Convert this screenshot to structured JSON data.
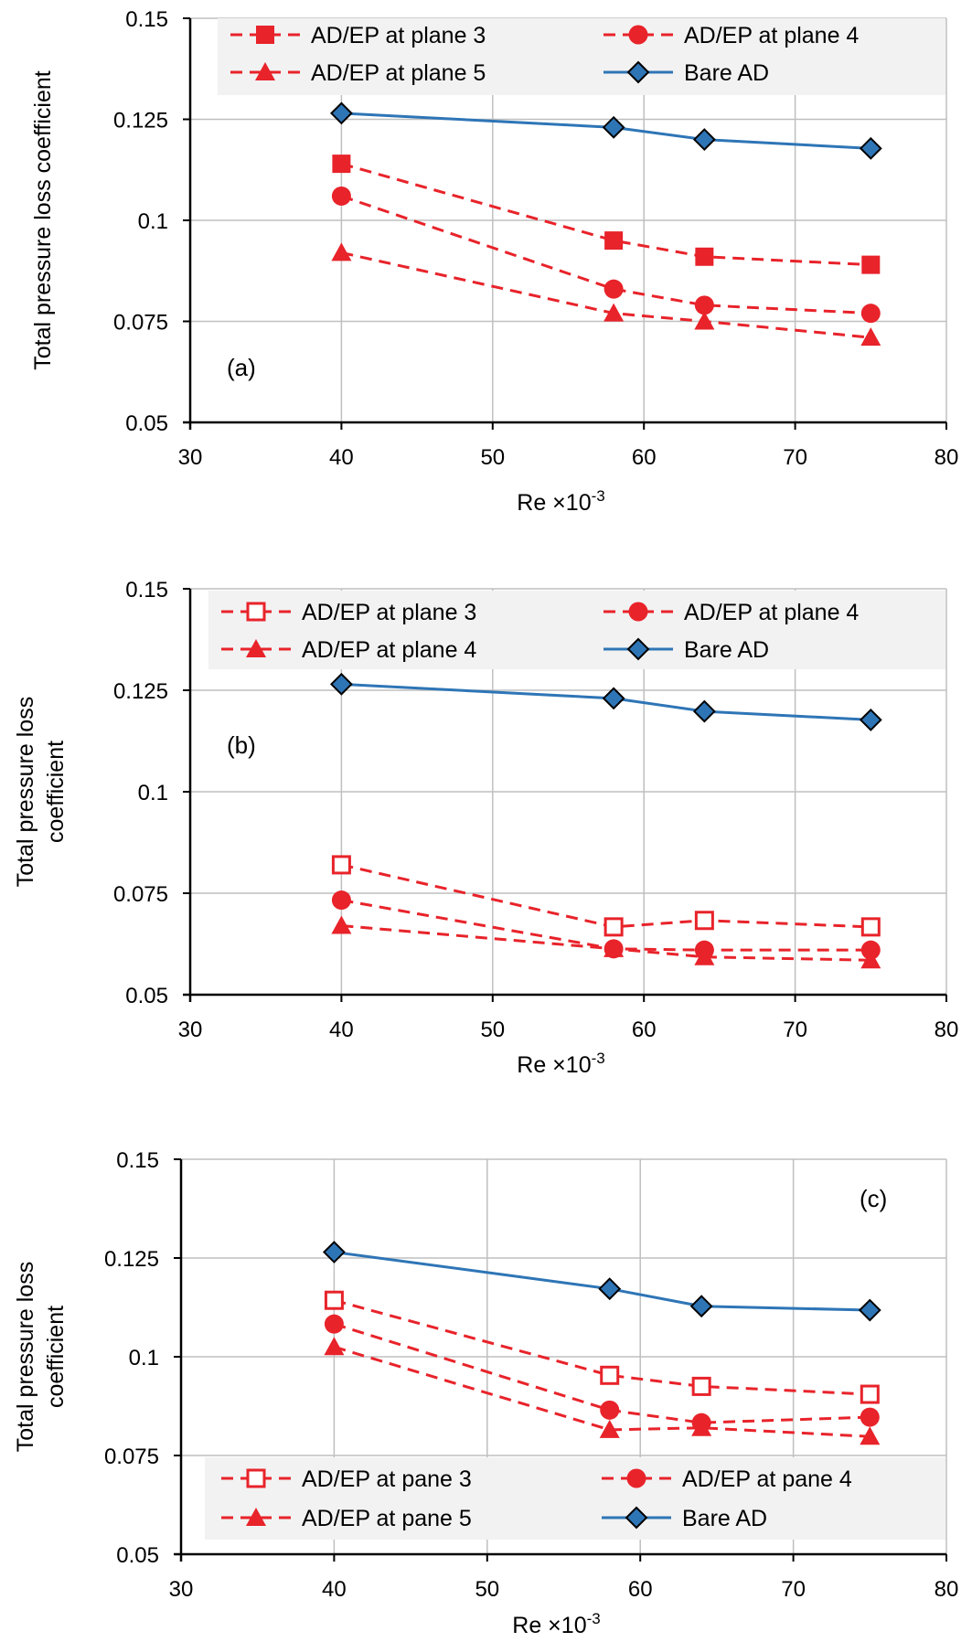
{
  "colors": {
    "red": "#e8232a",
    "blue": "#2e75b6",
    "diamond": "#2e75b6",
    "grid": "#bfbfbf",
    "legend_bg": "#f2f2f2"
  },
  "chart_data": [
    {
      "type": "line",
      "panel": "(a)",
      "xlabel": "Re ×10",
      "xlabel_sup": "-3",
      "ylabel_lines": [
        "Total pressure loss coefficient"
      ],
      "xlim": [
        30,
        80
      ],
      "ylim": [
        0.05,
        0.15
      ],
      "xticks": [
        30,
        40,
        50,
        60,
        70,
        80
      ],
      "yticks": [
        0.05,
        0.075,
        0.1,
        0.125,
        0.15
      ],
      "ytick_labels": [
        "0.05",
        "0.075",
        "0.1",
        "0.125",
        "0.15"
      ],
      "legend_position": "top",
      "series": [
        {
          "name": "AD/EP at plane 3",
          "marker": "square",
          "style": "dashed",
          "x": [
            40,
            58,
            64,
            75
          ],
          "y": [
            0.114,
            0.095,
            0.091,
            0.089
          ]
        },
        {
          "name": "AD/EP at plane 4",
          "marker": "circle",
          "style": "dashed",
          "x": [
            40,
            58,
            64,
            75
          ],
          "y": [
            0.106,
            0.083,
            0.079,
            0.077
          ]
        },
        {
          "name": "AD/EP at plane 5",
          "marker": "triangle",
          "style": "dashed",
          "x": [
            40,
            58,
            64,
            75
          ],
          "y": [
            0.092,
            0.077,
            0.075,
            0.071
          ]
        },
        {
          "name": "Bare AD",
          "marker": "diamond",
          "style": "solid",
          "x": [
            40,
            58,
            64,
            75
          ],
          "y": [
            0.1265,
            0.123,
            0.12,
            0.1178
          ]
        }
      ]
    },
    {
      "type": "line",
      "panel": "(b)",
      "xlabel": "Re ×10",
      "xlabel_sup": "-3",
      "ylabel_lines": [
        "Total pressure loss",
        "coefficient"
      ],
      "xlim": [
        30,
        80
      ],
      "ylim": [
        0.05,
        0.15
      ],
      "xticks": [
        30,
        40,
        50,
        60,
        70,
        80
      ],
      "yticks": [
        0.05,
        0.075,
        0.1,
        0.125,
        0.15
      ],
      "ytick_labels": [
        "0.05",
        "0.075",
        "0.1",
        "0.125",
        "0.15"
      ],
      "legend_position": "top",
      "series": [
        {
          "name": "AD/EP at plane 3",
          "marker": "square-open",
          "style": "dashed",
          "x": [
            40,
            58,
            64,
            75
          ],
          "y": [
            0.082,
            0.0667,
            0.0683,
            0.0667
          ]
        },
        {
          "name": "AD/EP at plane 4",
          "marker": "circle",
          "style": "dashed",
          "x": [
            40,
            58,
            64,
            75
          ],
          "y": [
            0.0733,
            0.0613,
            0.061,
            0.061
          ]
        },
        {
          "name": "AD/EP at plane 4",
          "marker": "triangle",
          "style": "dashed",
          "x": [
            40,
            58,
            64,
            75
          ],
          "y": [
            0.067,
            0.0613,
            0.0593,
            0.0585
          ]
        },
        {
          "name": "Bare AD",
          "marker": "diamond",
          "style": "solid",
          "x": [
            40,
            58,
            64,
            75
          ],
          "y": [
            0.1265,
            0.123,
            0.1198,
            0.1177
          ]
        }
      ]
    },
    {
      "type": "line",
      "panel": "(c)",
      "xlabel": "Re ×10",
      "xlabel_sup": "-3",
      "ylabel_lines": [
        "Total pressure loss",
        "coefficient"
      ],
      "xlim": [
        30,
        80
      ],
      "ylim": [
        0.05,
        0.15
      ],
      "xticks": [
        30,
        40,
        50,
        60,
        70,
        80
      ],
      "yticks": [
        0.05,
        0.075,
        0.1,
        0.125,
        0.15
      ],
      "ytick_labels": [
        "0.05",
        "0.075",
        "0.1",
        "0.125",
        "0.15"
      ],
      "legend_position": "bottom",
      "series": [
        {
          "name": "AD/EP at pane 3",
          "marker": "square-open",
          "style": "dashed",
          "x": [
            40,
            58,
            64,
            75
          ],
          "y": [
            0.1143,
            0.0953,
            0.0925,
            0.0905
          ]
        },
        {
          "name": "AD/EP at pane 4",
          "marker": "circle",
          "style": "dashed",
          "x": [
            40,
            58,
            64,
            75
          ],
          "y": [
            0.1083,
            0.0865,
            0.0833,
            0.0847
          ]
        },
        {
          "name": "AD/EP at pane 5",
          "marker": "triangle",
          "style": "dashed",
          "x": [
            40,
            58,
            64,
            75
          ],
          "y": [
            0.1025,
            0.0815,
            0.082,
            0.0798
          ]
        },
        {
          "name": "Bare AD",
          "marker": "diamond",
          "style": "solid",
          "x": [
            40,
            58,
            64,
            75
          ],
          "y": [
            0.1265,
            0.1172,
            0.1128,
            0.1118
          ]
        }
      ]
    }
  ]
}
